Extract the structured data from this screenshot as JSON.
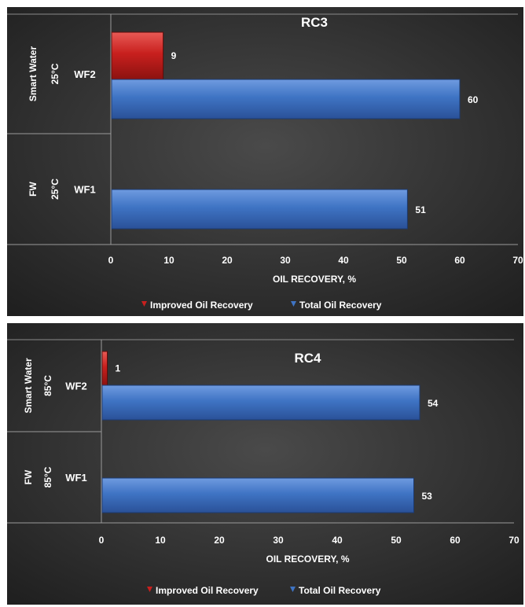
{
  "colors": {
    "improved": "#c8201e",
    "total": "#3f74c4",
    "background": "#353535",
    "text": "#ffffff"
  },
  "chart_data": [
    {
      "type": "bar",
      "orientation": "horizontal",
      "title": "RC3",
      "xlabel": "OIL RECOVERY, %",
      "xlim": [
        0,
        70
      ],
      "xticks": [
        "0",
        "10",
        "20",
        "30",
        "40",
        "50",
        "60",
        "70"
      ],
      "groups": [
        {
          "fluid": "Smart Water",
          "temperature": "25°C",
          "label": "WF2"
        },
        {
          "fluid": "FW",
          "temperature": "25°C",
          "label": "WF1"
        }
      ],
      "series": [
        {
          "name": "Improved Oil Recovery",
          "values": [
            9,
            null
          ]
        },
        {
          "name": "Total Oil Recovery",
          "values": [
            60,
            51
          ]
        }
      ],
      "data_labels": {
        "improved": [
          "9",
          ""
        ],
        "total": [
          "60",
          "51"
        ]
      },
      "legend": "bottom"
    },
    {
      "type": "bar",
      "orientation": "horizontal",
      "title": "RC4",
      "xlabel": "OIL RECOVERY, %",
      "xlim": [
        0,
        70
      ],
      "xticks": [
        "0",
        "10",
        "20",
        "30",
        "40",
        "50",
        "60",
        "70"
      ],
      "groups": [
        {
          "fluid": "Smart Water",
          "temperature": "85°C",
          "label": "WF2"
        },
        {
          "fluid": "FW",
          "temperature": "85°C",
          "label": "WF1"
        }
      ],
      "series": [
        {
          "name": "Improved Oil Recovery",
          "values": [
            1,
            null
          ]
        },
        {
          "name": "Total Oil Recovery",
          "values": [
            54,
            53
          ]
        }
      ],
      "data_labels": {
        "improved": [
          "1",
          ""
        ],
        "total": [
          "54",
          "53"
        ]
      },
      "legend": "bottom"
    }
  ]
}
